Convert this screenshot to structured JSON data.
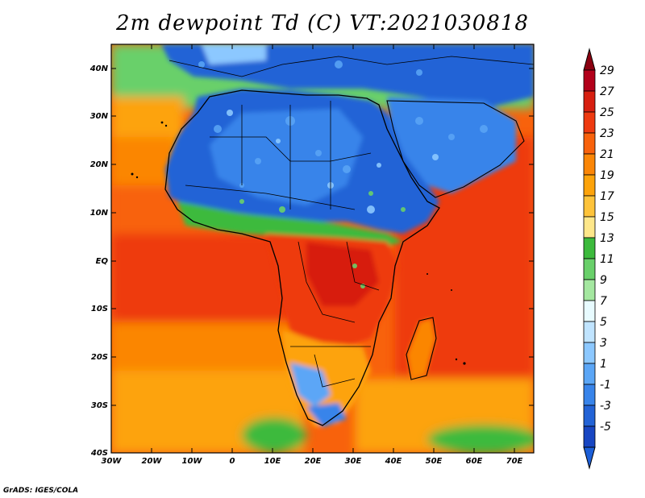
{
  "title": "2m dewpoint Td (C) VT:2021030818",
  "credit": "GrADS: IGES/COLA",
  "lat_labels": [
    "40N",
    "30N",
    "20N",
    "10N",
    "EQ",
    "10S",
    "20S",
    "30S",
    "40S"
  ],
  "lon_labels": [
    "30W",
    "20W",
    "10W",
    "0",
    "10E",
    "20E",
    "30E",
    "40E",
    "50E",
    "60E",
    "70E"
  ],
  "colorbar": {
    "labels": [
      "29",
      "27",
      "25",
      "23",
      "21",
      "19",
      "17",
      "15",
      "13",
      "11",
      "9",
      "7",
      "5",
      "3",
      "1",
      "-1",
      "-3",
      "-5"
    ],
    "colors": [
      "#b2001a",
      "#d71f10",
      "#ee3a10",
      "#f8620c",
      "#fb8606",
      "#fda30a",
      "#fec33a",
      "#fee78a",
      "#3cba3c",
      "#69d06a",
      "#a4e7a0",
      "#e8fbff",
      "#c0e4ff",
      "#8cc8ff",
      "#5ba6f6",
      "#3884ea",
      "#2363d6",
      "#1846c2"
    ],
    "top_color": "#8a0010",
    "bottom_color": "#1c5fd8"
  }
}
